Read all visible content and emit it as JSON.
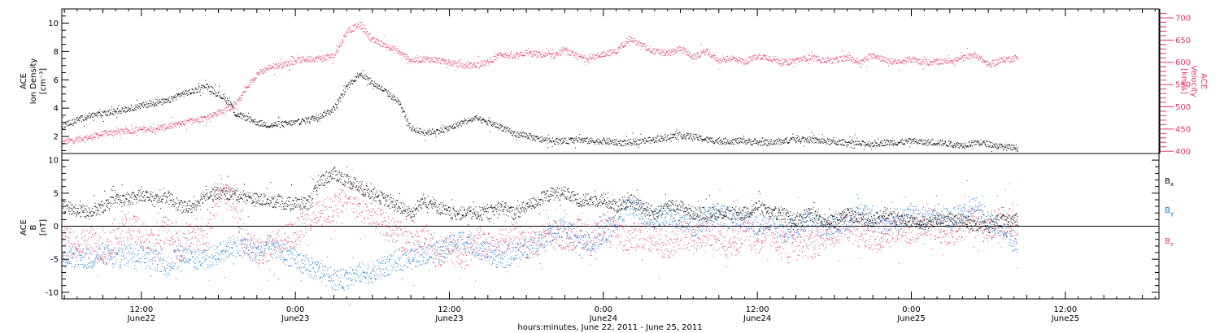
{
  "figure": {
    "xlabel": "hours:minutes, June 22, 2011 - June 25, 2011",
    "time_ticks": [
      {
        "hour": 12,
        "label": "12:00",
        "date": "June22"
      },
      {
        "hour": 24,
        "label": "0:00",
        "date": "June23"
      },
      {
        "hour": 36,
        "label": "12:00",
        "date": "June23"
      },
      {
        "hour": 48,
        "label": "0:00",
        "date": "June24"
      },
      {
        "hour": 60,
        "label": "12:00",
        "date": "June24"
      },
      {
        "hour": 72,
        "label": "0:00",
        "date": "June25"
      },
      {
        "hour": 84,
        "label": "12:00",
        "date": "June25"
      }
    ],
    "time_range_hours": [
      5.8,
      91.3
    ],
    "data_end_hour": 80.3
  },
  "colors": {
    "density": "#000000",
    "velocity": "#ee3366",
    "bx": "#000000",
    "by": "#1177dd",
    "bz": "#ee3366"
  },
  "chart_data": [
    {
      "type": "scatter",
      "panel": "top",
      "ylabel_left": [
        "ACE",
        "Ion Density",
        "[cm⁻³]"
      ],
      "ylabel_right": [
        "ACE",
        "Velocity",
        "[km/s]"
      ],
      "ylim_left": [
        0.8,
        11
      ],
      "yticks_left": [
        2,
        4,
        6,
        8,
        10
      ],
      "ylim_right": [
        395,
        720
      ],
      "yticks_right": [
        400,
        450,
        500,
        550,
        600,
        650,
        700
      ],
      "series": [
        {
          "axis": "left",
          "color": "#000000",
          "x": [
            5.8,
            7,
            8,
            9,
            10,
            11,
            12,
            13,
            14,
            15,
            16,
            17,
            18,
            19,
            19.3,
            20,
            21,
            22,
            23,
            24,
            25,
            26,
            27,
            28,
            29,
            30,
            31,
            32,
            33,
            34,
            35,
            36,
            37,
            38,
            39,
            40,
            41,
            42,
            43,
            44,
            45,
            46,
            47,
            48,
            49,
            50,
            51,
            52,
            53,
            54,
            55,
            56,
            57,
            58,
            59,
            60,
            61,
            62,
            63,
            64,
            65,
            66,
            67,
            68,
            69,
            70,
            71,
            72,
            73,
            74,
            75,
            76,
            77,
            78,
            79,
            80.3
          ],
          "y": [
            2.8,
            3.2,
            3.5,
            3.6,
            3.8,
            4.0,
            4.2,
            4.4,
            4.5,
            5.0,
            5.2,
            5.6,
            5.0,
            4.3,
            3.6,
            3.4,
            3.0,
            2.8,
            2.9,
            3.0,
            3.2,
            3.5,
            4.0,
            5.5,
            6.5,
            5.8,
            5.2,
            4.5,
            2.6,
            2.3,
            2.4,
            2.6,
            3.0,
            3.3,
            3.0,
            2.7,
            2.2,
            2.1,
            1.8,
            1.7,
            1.7,
            1.8,
            1.7,
            1.7,
            1.6,
            1.6,
            1.7,
            1.8,
            2.0,
            2.1,
            2.0,
            1.8,
            1.7,
            1.7,
            1.7,
            1.6,
            1.6,
            1.7,
            1.9,
            1.8,
            1.7,
            1.6,
            1.6,
            1.5,
            1.5,
            1.6,
            1.6,
            1.7,
            1.6,
            1.6,
            1.5,
            1.4,
            1.6,
            1.5,
            1.3,
            1.2
          ]
        },
        {
          "axis": "right",
          "color": "#ee3366",
          "x": [
            5.8,
            7,
            8,
            9,
            10,
            11,
            12,
            13,
            14,
            15,
            16,
            17,
            18,
            19,
            19.3,
            20,
            21,
            22,
            23,
            24,
            25,
            26,
            27,
            28,
            29,
            30,
            31,
            32,
            33,
            34,
            35,
            36,
            37,
            38,
            39,
            40,
            41,
            42,
            43,
            44,
            45,
            46,
            47,
            48,
            49,
            50,
            51,
            52,
            53,
            54,
            55,
            56,
            57,
            58,
            59,
            60,
            61,
            62,
            63,
            64,
            65,
            66,
            67,
            68,
            69,
            70,
            71,
            72,
            73,
            74,
            75,
            76,
            77,
            78,
            79,
            80.3
          ],
          "y": [
            420,
            428,
            432,
            440,
            444,
            446,
            450,
            452,
            456,
            462,
            470,
            476,
            488,
            500,
            504,
            535,
            575,
            590,
            595,
            605,
            608,
            610,
            615,
            670,
            685,
            650,
            640,
            625,
            605,
            608,
            606,
            600,
            593,
            595,
            600,
            620,
            612,
            622,
            618,
            615,
            628,
            612,
            610,
            620,
            625,
            655,
            638,
            625,
            620,
            632,
            612,
            626,
            604,
            610,
            602,
            615,
            610,
            600,
            605,
            612,
            606,
            605,
            612,
            600,
            618,
            605,
            600,
            608,
            600,
            602,
            604,
            610,
            618,
            595,
            605,
            612
          ]
        }
      ]
    },
    {
      "type": "scatter",
      "panel": "bottom",
      "ylabel": [
        "ACE",
        "B",
        "[nT]"
      ],
      "ylim": [
        -11,
        11
      ],
      "yticks": [
        -10,
        -5,
        0,
        5,
        10
      ],
      "zero_line": true,
      "series": [
        {
          "name": "B",
          "sub": "x",
          "color": "#000000",
          "x": [
            5.8,
            7,
            8,
            9,
            10,
            11,
            12,
            13,
            14,
            15,
            16,
            17,
            18,
            19,
            20,
            21,
            22,
            23,
            24,
            25,
            26,
            27,
            28,
            29,
            30,
            31,
            32,
            33,
            34,
            35,
            36,
            37,
            38,
            39,
            40,
            41,
            42,
            43,
            44,
            45,
            46,
            47,
            48,
            49,
            50,
            51,
            52,
            53,
            54,
            55,
            56,
            57,
            58,
            59,
            60,
            61,
            62,
            63,
            64,
            65,
            66,
            67,
            68,
            69,
            70,
            71,
            72,
            73,
            74,
            75,
            76,
            77,
            78,
            79,
            80.3
          ],
          "y": [
            3,
            2.5,
            2,
            3,
            4,
            4,
            5,
            4,
            4.5,
            3,
            3,
            5,
            5,
            5,
            4.5,
            4,
            4,
            3.5,
            3.5,
            3.5,
            7,
            8,
            7,
            6,
            5,
            4,
            3,
            2,
            4,
            3,
            2,
            2,
            2,
            2,
            3,
            2,
            3,
            4,
            5,
            5,
            4,
            4,
            4,
            3,
            4,
            3,
            2,
            3,
            3,
            2,
            2,
            2,
            2,
            2,
            3,
            2,
            2,
            1,
            2,
            1,
            1,
            2,
            1,
            1,
            2,
            1,
            1,
            0,
            1,
            1,
            1,
            0,
            0,
            1,
            1
          ]
        },
        {
          "name": "B",
          "sub": "y",
          "color": "#1177dd",
          "x": [
            5.8,
            7,
            8,
            9,
            10,
            11,
            12,
            13,
            14,
            15,
            16,
            17,
            18,
            19,
            20,
            21,
            22,
            23,
            24,
            25,
            26,
            27,
            28,
            29,
            30,
            31,
            32,
            33,
            34,
            35,
            36,
            37,
            38,
            39,
            40,
            41,
            42,
            43,
            44,
            45,
            46,
            47,
            48,
            49,
            50,
            51,
            52,
            53,
            54,
            55,
            56,
            57,
            58,
            59,
            60,
            61,
            62,
            63,
            64,
            65,
            66,
            67,
            68,
            69,
            70,
            71,
            72,
            73,
            74,
            75,
            76,
            77,
            78,
            79,
            80.3
          ],
          "y": [
            -5,
            -4.5,
            -5,
            -4,
            -5,
            -4,
            -4,
            -5,
            -6,
            -4,
            -5,
            -5,
            -4,
            -3,
            -3,
            -4,
            -3,
            -4,
            -5,
            -6,
            -7,
            -8,
            -8,
            -7,
            -7,
            -6,
            -5,
            -5,
            -4,
            -4,
            -3,
            -2,
            -3,
            -4,
            -5,
            -4,
            -3,
            -2,
            -1,
            0,
            -2,
            -3,
            -1,
            1,
            3,
            2,
            1,
            2,
            1,
            0,
            1,
            2,
            1,
            1,
            0,
            1,
            -1,
            0,
            1,
            0,
            0,
            1,
            2,
            1,
            0,
            1,
            2,
            1,
            2,
            1,
            2,
            3,
            1,
            0,
            -3
          ]
        },
        {
          "name": "B",
          "sub": "z",
          "color": "#ee3366",
          "x": [
            5.8,
            7,
            8,
            9,
            10,
            11,
            12,
            13,
            14,
            15,
            16,
            17,
            18,
            19,
            20,
            21,
            22,
            23,
            24,
            25,
            26,
            27,
            28,
            29,
            30,
            31,
            32,
            33,
            34,
            35,
            36,
            37,
            38,
            39,
            40,
            41,
            42,
            43,
            44,
            45,
            46,
            47,
            48,
            49,
            50,
            51,
            52,
            53,
            54,
            55,
            56,
            57,
            58,
            59,
            60,
            61,
            62,
            63,
            64,
            65,
            66,
            67,
            68,
            69,
            70,
            71,
            72,
            73,
            74,
            75,
            76,
            77,
            78,
            79,
            80.3
          ],
          "y": [
            -2,
            -3,
            -2,
            -4,
            -2,
            0,
            -1,
            -3,
            0,
            -4,
            0,
            -3,
            6,
            4,
            -2,
            -4,
            -3,
            -2,
            -1,
            1,
            2,
            3,
            5,
            3,
            2,
            0,
            -1,
            -3,
            -2,
            -4,
            -3,
            -5,
            -2,
            -3,
            -2,
            -1,
            -3,
            -2,
            -1,
            -2,
            -1,
            -2,
            0,
            -1,
            -2,
            -1,
            -2,
            -3,
            -1,
            -2,
            -1,
            -2,
            -3,
            -1,
            -2,
            -1,
            -3,
            -2,
            -3,
            -2,
            -1,
            0,
            -1,
            -2,
            -1,
            0,
            -1,
            1,
            0,
            -1,
            0,
            1,
            0,
            1,
            0
          ]
        }
      ]
    }
  ]
}
